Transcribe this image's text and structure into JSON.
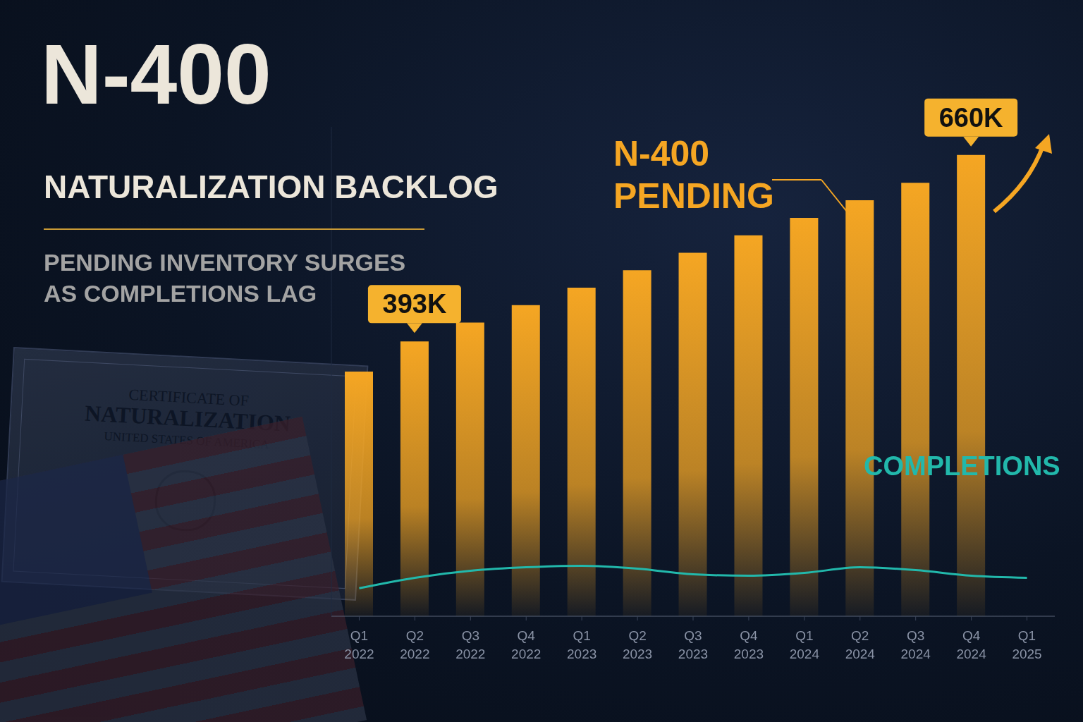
{
  "chart_data": {
    "type": "bar",
    "title": "N-400",
    "subtitle": "NATURALIZATION BACKLOG",
    "caption": "PENDING INVENTORY SURGES AS COMPLETIONS LAG",
    "decoration": [
      "CERTIFICATE OF",
      "NATURALIZATION",
      "UNITED STATES OF AMERICA"
    ],
    "categories": [
      "Q1 2022",
      "Q2 2022",
      "Q3 2022",
      "Q4 2022",
      "Q1 2023",
      "Q2 2023",
      "Q3 2023",
      "Q4 2023",
      "Q1 2024",
      "Q2 2024",
      "Q3 2024",
      "Q4 2024",
      "Q1 2025"
    ],
    "series": [
      {
        "name": "N-400 PENDING",
        "type": "bar",
        "color": "#f5a623",
        "values": [
          350,
          393,
          420,
          445,
          470,
          495,
          520,
          545,
          570,
          595,
          620,
          660,
          null
        ],
        "value_labels": [
          null,
          "393K",
          null,
          null,
          null,
          null,
          null,
          null,
          null,
          null,
          null,
          "660K",
          null
        ]
      },
      {
        "name": "COMPLETIONS",
        "type": "line",
        "color": "#22b8ab",
        "values": [
          40,
          55,
          65,
          70,
          72,
          68,
          60,
          58,
          62,
          70,
          66,
          58,
          55
        ]
      }
    ],
    "ylim": [
      0,
      700
    ],
    "grid": false,
    "tick_labels": "x",
    "legend": "none"
  }
}
